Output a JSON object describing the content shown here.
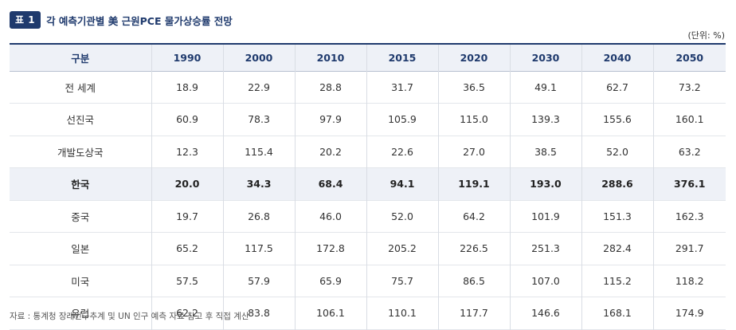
{
  "header": {
    "badge": "표 1",
    "title": "각 예측기관별 美 근원PCE 물가상승률 전망",
    "unit": "(단위: %)"
  },
  "table": {
    "columns": [
      "구분",
      "1990",
      "2000",
      "2010",
      "2015",
      "2020",
      "2030",
      "2040",
      "2050"
    ],
    "rows": [
      {
        "label": "전 세계",
        "values": [
          "18.9",
          "22.9",
          "28.8",
          "31.7",
          "36.5",
          "49.1",
          "62.7",
          "73.2"
        ]
      },
      {
        "label": "선진국",
        "values": [
          "60.9",
          "78.3",
          "97.9",
          "105.9",
          "115.0",
          "139.3",
          "155.6",
          "160.1"
        ]
      },
      {
        "label": "개발도상국",
        "values": [
          "12.3",
          "115.4",
          "20.2",
          "22.6",
          "27.0",
          "38.5",
          "52.0",
          "63.2"
        ]
      },
      {
        "label": "한국",
        "values": [
          "20.0",
          "34.3",
          "68.4",
          "94.1",
          "119.1",
          "193.0",
          "288.6",
          "376.1"
        ]
      },
      {
        "label": "중국",
        "values": [
          "19.7",
          "26.8",
          "46.0",
          "52.0",
          "64.2",
          "101.9",
          "151.3",
          "162.3"
        ]
      },
      {
        "label": "일본",
        "values": [
          "65.2",
          "117.5",
          "172.8",
          "205.2",
          "226.5",
          "251.3",
          "282.4",
          "291.7"
        ]
      },
      {
        "label": "미국",
        "values": [
          "57.5",
          "57.9",
          "65.9",
          "75.7",
          "86.5",
          "107.0",
          "115.2",
          "118.2"
        ]
      },
      {
        "label": "유럽",
        "values": [
          "62.2",
          "83.8",
          "106.1",
          "110.1",
          "117.7",
          "146.6",
          "168.1",
          "174.9"
        ]
      }
    ]
  },
  "footer": {
    "source": "자료 : 통계청 장래인구추계 및 UN 인구 예측 자료 참고 후 직접 계산"
  },
  "colors": {
    "accent": "#1f3a6d",
    "header_bg": "#eef1f7",
    "highlight_row_bg": "#eef1f7"
  }
}
